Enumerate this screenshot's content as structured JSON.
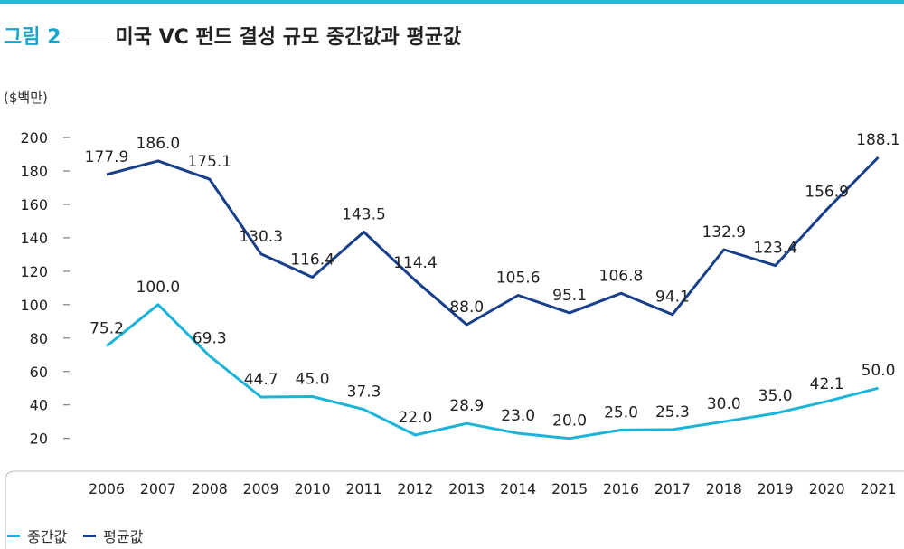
{
  "header": {
    "figure_label": "그림 2",
    "title": "미국 VC 펀드 결성 규모 중간값과 평균값"
  },
  "chart_data": {
    "type": "line",
    "unit_label": "($백만)",
    "categories": [
      "2006",
      "2007",
      "2008",
      "2009",
      "2010",
      "2011",
      "2012",
      "2013",
      "2014",
      "2015",
      "2016",
      "2017",
      "2018",
      "2019",
      "2020",
      "2021"
    ],
    "yticks": [
      20,
      40,
      60,
      80,
      100,
      120,
      140,
      160,
      180,
      200
    ],
    "ylim": [
      12,
      200
    ],
    "grid": false,
    "legend_position": "bottom-left",
    "series": [
      {
        "name": "중간값",
        "color": "#1ab3d9",
        "values": [
          75.2,
          100.0,
          69.3,
          44.7,
          45.0,
          37.3,
          22.0,
          28.9,
          23.0,
          20.0,
          25.0,
          25.3,
          30.0,
          35.0,
          42.1,
          50.0
        ],
        "labels": [
          "75.2",
          "100.0",
          "69.3",
          "44.7",
          "45.0",
          "37.3",
          "22.0",
          "28.9",
          "23.0",
          "20.0",
          "25.0",
          "25.3",
          "30.0",
          "35.0",
          "42.1",
          "50.0"
        ]
      },
      {
        "name": "평균값",
        "color": "#173f8a",
        "values": [
          177.9,
          186.0,
          175.1,
          130.3,
          116.4,
          143.5,
          114.4,
          88.0,
          105.6,
          95.1,
          106.8,
          94.1,
          132.9,
          123.4,
          156.9,
          188.1
        ],
        "labels": [
          "177.9",
          "186.0",
          "175.1",
          "130.3",
          "116.4",
          "143.5",
          "114.4",
          "88.0",
          "105.6",
          "95.1",
          "106.8",
          "94.1",
          "132.9",
          "123.4",
          "156.9",
          "188.1"
        ]
      }
    ]
  }
}
